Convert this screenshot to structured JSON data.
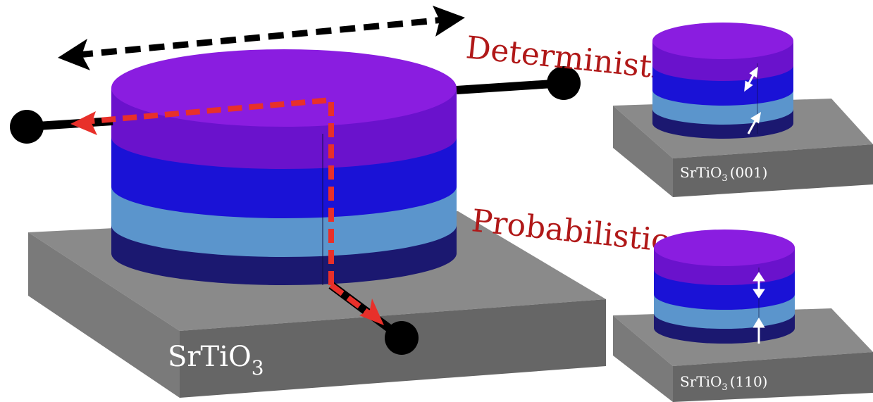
{
  "labels": {
    "main_substrate": "SrTiO",
    "main_substrate_sub": "3",
    "deterministic": "Deterministic",
    "probabilistic": "Probabilistic",
    "small_top_substrate": "SrTiO",
    "small_top_sub": "3",
    "small_top_orientation": "(001)",
    "small_bottom_substrate": "SrTiO",
    "small_bottom_sub": "3",
    "small_bottom_orientation": "(110)"
  },
  "colors": {
    "top_layer": "#7a10d8",
    "blue_layer": "#1a12d6",
    "light_layer": "#5b95cc",
    "dark_layer": "#1b1870",
    "substrate_top": "#8a8a8a",
    "substrate_front": "#6e6e6e",
    "substrate_right": "#555555",
    "label_red": "#b01818",
    "current_red": "#e8302a",
    "wire_black": "#000000"
  },
  "icons": {
    "terminal": "black-circle-terminal",
    "field_arrow": "double-headed-dashed-arrow",
    "current_arrow": "red-dashed-current-arrow",
    "magnetization_arrow": "white-arrow"
  }
}
